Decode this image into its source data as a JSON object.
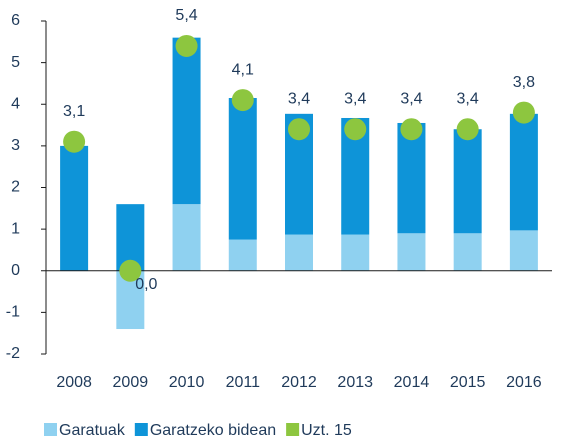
{
  "chart_data": {
    "type": "bar",
    "stacked": true,
    "categories": [
      "2008",
      "2009",
      "2010",
      "2011",
      "2012",
      "2013",
      "2014",
      "2015",
      "2016"
    ],
    "series": [
      {
        "name": "Garatuak",
        "color": "#8fd1f0",
        "values": [
          0,
          -1.4,
          1.6,
          0.75,
          0.87,
          0.87,
          0.9,
          0.9,
          0.97
        ]
      },
      {
        "name": "Garatzeko bidean",
        "color": "#0e94d8",
        "values": [
          3.0,
          1.6,
          4.0,
          3.4,
          2.9,
          2.8,
          2.65,
          2.5,
          2.8
        ]
      },
      {
        "name": "Uzt. 15",
        "color": "#8dc63f",
        "type": "scatter",
        "values": [
          3.1,
          0.0,
          5.4,
          4.1,
          3.4,
          3.4,
          3.4,
          3.4,
          3.8
        ],
        "value_labels": [
          "3,1",
          "0,0",
          "5,4",
          "4,1",
          "3,4",
          "3,4",
          "3,4",
          "3,4",
          "3,8"
        ]
      }
    ],
    "ylim": [
      -2,
      6
    ],
    "yticks": [
      -2,
      -1,
      0,
      1,
      2,
      3,
      4,
      5,
      6
    ],
    "grid": false,
    "legend": "bottom"
  }
}
